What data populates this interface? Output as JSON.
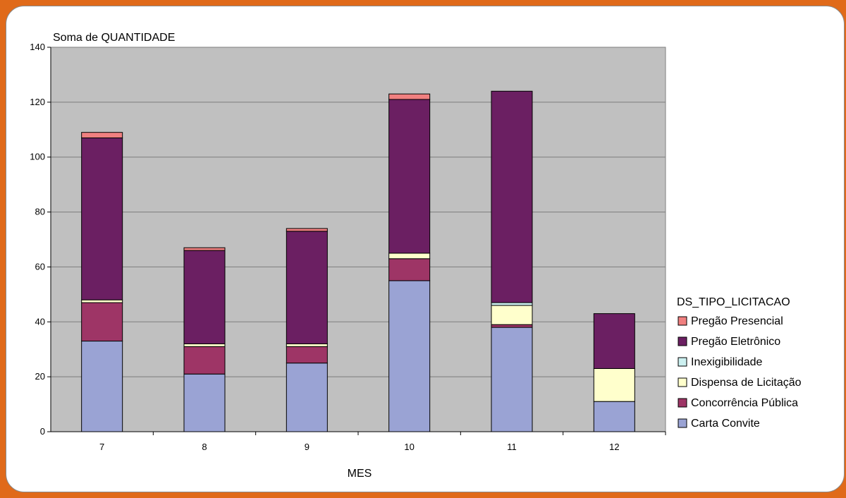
{
  "chart_data": {
    "type": "bar",
    "stacked": true,
    "title": "Soma de QUANTIDADE",
    "xlabel": "MES",
    "ylabel": "",
    "categories": [
      "7",
      "8",
      "9",
      "10",
      "11",
      "12"
    ],
    "ylim": [
      0,
      140
    ],
    "yticks": [
      0,
      20,
      40,
      60,
      80,
      100,
      120,
      140
    ],
    "grid": true,
    "legend_title": "DS_TIPO_LICITACAO",
    "legend_position": "right",
    "plot_background": "#c0c0c0",
    "series": [
      {
        "name": "Carta Convite",
        "color": "#9aa3d4",
        "values": [
          33,
          21,
          25,
          55,
          38,
          11
        ]
      },
      {
        "name": "Concorrência Pública",
        "color": "#9e3566",
        "values": [
          14,
          10,
          6,
          8,
          1,
          0
        ]
      },
      {
        "name": "Dispensa de Licitação",
        "color": "#ffffcc",
        "values": [
          1,
          1,
          1,
          2,
          7,
          12
        ]
      },
      {
        "name": "Inexigibilidade",
        "color": "#ccf0f0",
        "values": [
          0,
          0,
          0,
          0,
          1,
          0
        ]
      },
      {
        "name": "Pregão Eletrônico",
        "color": "#6b1f62",
        "values": [
          59,
          34,
          41,
          56,
          77,
          20
        ]
      },
      {
        "name": "Pregão Presencial",
        "color": "#f08080",
        "values": [
          2,
          1,
          1,
          2,
          0,
          0
        ]
      }
    ]
  }
}
